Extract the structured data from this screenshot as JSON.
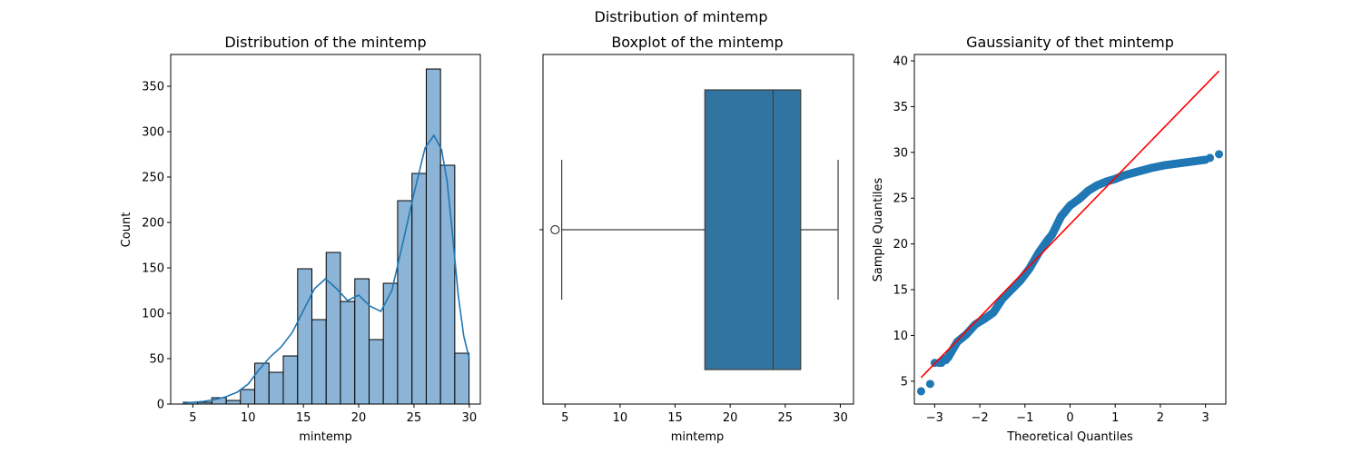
{
  "figure": {
    "title": "Distribution of mintemp"
  },
  "colors": {
    "hist_fill": "#8cb4d6",
    "kde_line": "#1f77b4",
    "box_fill": "#3274a1",
    "box_line": "#3d3d3d",
    "qq_points": "#1f77b4",
    "qq_line": "#ff0000"
  },
  "chart_data": [
    {
      "type": "histogram",
      "title": "Distribution of the mintemp",
      "xlabel": "mintemp",
      "ylabel": "Count",
      "xlim": [
        3.0,
        31.0
      ],
      "ylim": [
        0,
        385
      ],
      "xticks": [
        5,
        10,
        15,
        20,
        25,
        30
      ],
      "yticks": [
        0,
        50,
        100,
        150,
        200,
        250,
        300,
        350
      ],
      "bins": [
        {
          "x0": 4.14,
          "x1": 5.43,
          "count": 2
        },
        {
          "x0": 5.43,
          "x1": 6.72,
          "count": 2
        },
        {
          "x0": 6.72,
          "x1": 8.02,
          "count": 7
        },
        {
          "x0": 8.02,
          "x1": 9.31,
          "count": 4
        },
        {
          "x0": 9.31,
          "x1": 10.6,
          "count": 16
        },
        {
          "x0": 10.6,
          "x1": 11.89,
          "count": 45
        },
        {
          "x0": 11.89,
          "x1": 13.18,
          "count": 35
        },
        {
          "x0": 13.18,
          "x1": 14.48,
          "count": 53
        },
        {
          "x0": 14.48,
          "x1": 15.77,
          "count": 149
        },
        {
          "x0": 15.77,
          "x1": 17.06,
          "count": 93
        },
        {
          "x0": 17.06,
          "x1": 18.35,
          "count": 167
        },
        {
          "x0": 18.35,
          "x1": 19.65,
          "count": 113
        },
        {
          "x0": 19.65,
          "x1": 20.94,
          "count": 138
        },
        {
          "x0": 20.94,
          "x1": 22.23,
          "count": 71
        },
        {
          "x0": 22.23,
          "x1": 23.52,
          "count": 133
        },
        {
          "x0": 23.52,
          "x1": 24.82,
          "count": 224
        },
        {
          "x0": 24.82,
          "x1": 26.11,
          "count": 254
        },
        {
          "x0": 26.11,
          "x1": 27.4,
          "count": 369
        },
        {
          "x0": 27.4,
          "x1": 28.69,
          "count": 263
        },
        {
          "x0": 28.69,
          "x1": 29.98,
          "count": 56
        }
      ],
      "kde": {
        "x": [
          4.1,
          5,
          6,
          7,
          8,
          9,
          10,
          11,
          12,
          13,
          14,
          15,
          16,
          17,
          18,
          19,
          20,
          21,
          22,
          23,
          24,
          25,
          26,
          26.8,
          27.5,
          28,
          28.5,
          29,
          29.5,
          30
        ],
        "y": [
          1,
          2,
          3,
          5,
          8,
          13,
          22,
          38,
          52,
          63,
          79,
          103,
          127,
          138,
          127,
          114,
          120,
          108,
          102,
          125,
          178,
          232,
          282,
          296,
          280,
          245,
          185,
          120,
          75,
          50
        ]
      }
    },
    {
      "type": "boxplot",
      "title": "Boxplot of the mintemp",
      "xlabel": "mintemp",
      "xlim": [
        3.0,
        31.2
      ],
      "xticks": [
        5,
        10,
        15,
        20,
        25,
        30
      ],
      "whisker_low": 4.7,
      "q1": 17.7,
      "median": 23.9,
      "q3": 26.4,
      "whisker_high": 29.8,
      "outliers": [
        4.1
      ]
    },
    {
      "type": "scatter",
      "title": "Gaussianity of thet  mintemp",
      "xlabel": "Theoretical Quantiles",
      "ylabel": "Sample Quantiles",
      "xlim": [
        -3.45,
        3.45
      ],
      "ylim": [
        2.5,
        40.7
      ],
      "xticks": [
        -3,
        -2,
        -1,
        0,
        1,
        2,
        3
      ],
      "yticks": [
        5,
        10,
        15,
        20,
        25,
        30,
        35,
        40
      ],
      "reference_line": {
        "x": [
          -3.3,
          3.3
        ],
        "y": [
          5.4,
          38.9
        ]
      },
      "quantile_curve": [
        [
          -2.9,
          7.0
        ],
        [
          -2.7,
          7.6
        ],
        [
          -2.5,
          9.3
        ],
        [
          -2.3,
          10.1
        ],
        [
          -2.1,
          11.2
        ],
        [
          -1.9,
          11.8
        ],
        [
          -1.7,
          12.5
        ],
        [
          -1.5,
          14.0
        ],
        [
          -1.3,
          15.0
        ],
        [
          -1.1,
          16.0
        ],
        [
          -0.9,
          17.3
        ],
        [
          -0.7,
          19.0
        ],
        [
          -0.5,
          20.4
        ],
        [
          -0.4,
          21.0
        ],
        [
          -0.3,
          22.0
        ],
        [
          -0.2,
          23.0
        ],
        [
          -0.1,
          23.6
        ],
        [
          0.0,
          24.2
        ],
        [
          0.2,
          24.9
        ],
        [
          0.4,
          25.8
        ],
        [
          0.6,
          26.4
        ],
        [
          0.8,
          26.8
        ],
        [
          1.0,
          27.1
        ],
        [
          1.2,
          27.5
        ],
        [
          1.5,
          27.9
        ],
        [
          1.8,
          28.3
        ],
        [
          2.1,
          28.6
        ],
        [
          2.4,
          28.8
        ],
        [
          2.7,
          29.0
        ],
        [
          3.0,
          29.2
        ]
      ],
      "points": [
        [
          -3.3,
          3.9
        ],
        [
          -3.1,
          4.7
        ],
        [
          -3.0,
          7.0
        ],
        [
          -2.85,
          7.0
        ],
        [
          -2.75,
          7.3
        ],
        [
          3.1,
          29.4
        ],
        [
          3.3,
          29.8
        ]
      ]
    }
  ]
}
